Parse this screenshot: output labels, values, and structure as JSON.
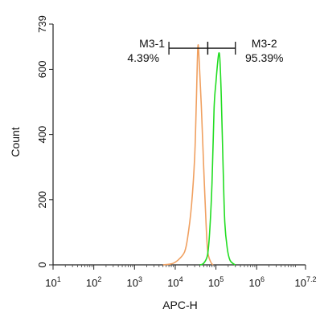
{
  "chart_data": {
    "type": "line",
    "title": "",
    "xlabel": "APC-H",
    "ylabel": "Count",
    "x_scale": "log",
    "xlim": [
      10,
      15849000
    ],
    "ylim": [
      0,
      739
    ],
    "x_ticks": [
      {
        "base": "10",
        "exp": "1",
        "value": 10
      },
      {
        "base": "10",
        "exp": "2",
        "value": 100
      },
      {
        "base": "10",
        "exp": "3",
        "value": 1000
      },
      {
        "base": "10",
        "exp": "4",
        "value": 10000
      },
      {
        "base": "10",
        "exp": "5",
        "value": 100000
      },
      {
        "base": "10",
        "exp": "6",
        "value": 1000000
      },
      {
        "base": "10",
        "exp": "7.2",
        "value": 15849000
      }
    ],
    "y_ticks": [
      {
        "label": "0",
        "value": 0
      },
      {
        "label": "200",
        "value": 200
      },
      {
        "label": "400",
        "value": 400
      },
      {
        "label": "600",
        "value": 600
      },
      {
        "label": "739",
        "value": 739
      }
    ],
    "grid": false,
    "series": [
      {
        "color": "#f0a060",
        "x": [
          5000,
          8000,
          10000,
          13000,
          17000,
          20000,
          25000,
          30000,
          33000,
          36000,
          39000,
          44000,
          50000,
          57000,
          63000,
          75000,
          85000
        ],
        "y": [
          0,
          3,
          8,
          20,
          40,
          80,
          180,
          330,
          500,
          670,
          620,
          480,
          300,
          130,
          40,
          8,
          0
        ]
      },
      {
        "color": "#22dd22",
        "x": [
          40000,
          50000,
          62000,
          70000,
          80000,
          90000,
          100000,
          110000,
          118000,
          125000,
          135000,
          150000,
          165000,
          190000,
          220000,
          270000,
          300000
        ],
        "y": [
          0,
          5,
          30,
          100,
          250,
          480,
          560,
          620,
          650,
          630,
          520,
          300,
          130,
          50,
          15,
          3,
          0
        ]
      }
    ],
    "gates": [
      {
        "label": "M3-1",
        "value": "4.39%",
        "x_range": [
          7000,
          63000
        ]
      },
      {
        "label": "M3-2",
        "value": "95.39%",
        "x_range": [
          63000,
          300000
        ]
      }
    ],
    "gate_y": 665
  }
}
